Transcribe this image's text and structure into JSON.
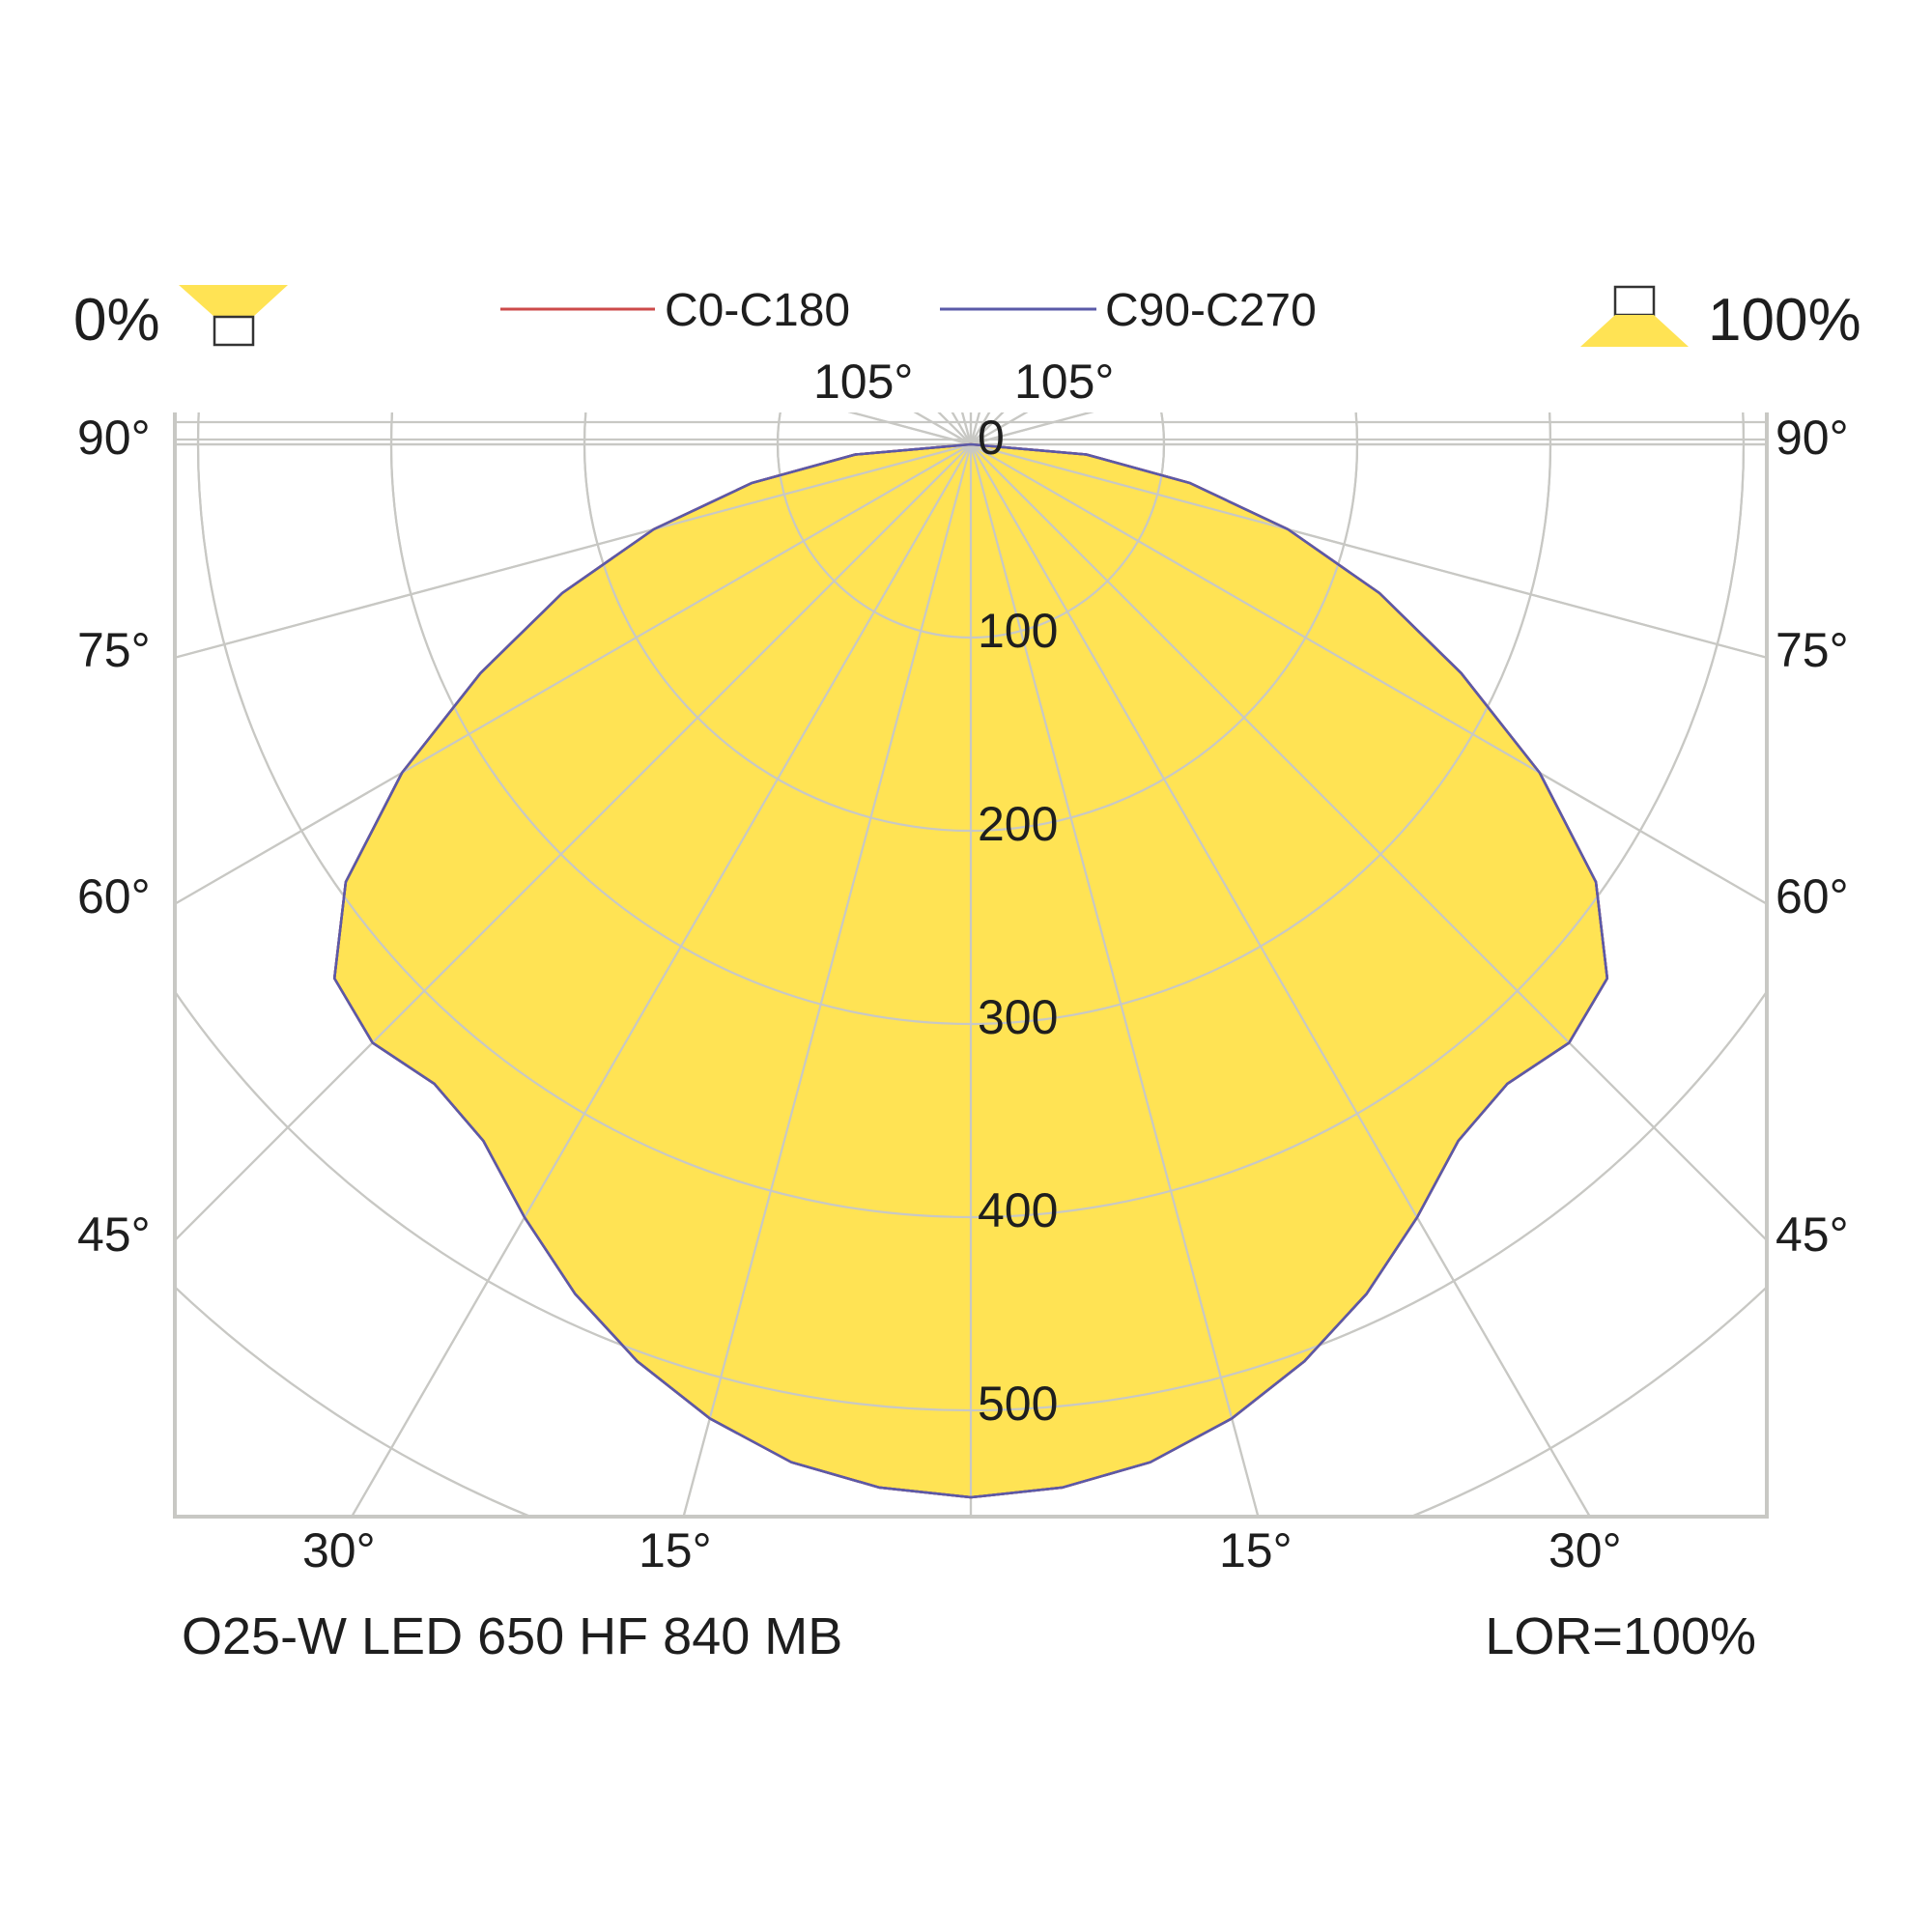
{
  "chart_data": {
    "type": "polar",
    "subtype": "luminous-intensity-distribution",
    "legend": [
      {
        "label": "C0-C180",
        "color": "#cc4a4a"
      },
      {
        "label": "C90-C270",
        "color": "#5a5aa8"
      }
    ],
    "flux": {
      "upward_label": "0%",
      "downward_label": "100%"
    },
    "radial_ticks": [
      "0",
      "100",
      "200",
      "300",
      "400",
      "500"
    ],
    "radial_values": [
      0,
      100,
      200,
      300,
      400,
      500
    ],
    "angle_labels": {
      "left": [
        "90°",
        "75°",
        "60°",
        "45°"
      ],
      "right": [
        "90°",
        "75°",
        "60°",
        "45°"
      ],
      "bottom_left": [
        "30°",
        "15°"
      ],
      "bottom_right": [
        "15°",
        "30°"
      ],
      "top": [
        "105°",
        "105°"
      ]
    },
    "series": [
      {
        "name": "C0-C180",
        "color": "#cc4a4a",
        "fill": "#ffe354",
        "angles": [
          0,
          5,
          10,
          15,
          20,
          25,
          30,
          35,
          40,
          45,
          50,
          55,
          60,
          65,
          70,
          75,
          80,
          85,
          90
        ],
        "values": [
          545,
          542,
          535,
          522,
          505,
          485,
          462,
          440,
          432,
          438,
          430,
          395,
          340,
          280,
          225,
          170,
          115,
          60,
          0
        ]
      },
      {
        "name": "C90-C270",
        "color": "#5a5aa8",
        "fill": "#ffe354",
        "angles": [
          0,
          5,
          10,
          15,
          20,
          25,
          30,
          35,
          40,
          45,
          50,
          55,
          60,
          65,
          70,
          75,
          80,
          85,
          90
        ],
        "values": [
          545,
          542,
          535,
          522,
          505,
          485,
          462,
          440,
          432,
          438,
          430,
          395,
          340,
          280,
          225,
          170,
          115,
          60,
          0
        ]
      }
    ],
    "footer": {
      "left": "O25-W LED 650 HF 840 MB",
      "right": "LOR=100%"
    },
    "colors": {
      "fill": "#ffe354",
      "grid": "#c8c8c4",
      "text": "#1e1e1e"
    }
  }
}
